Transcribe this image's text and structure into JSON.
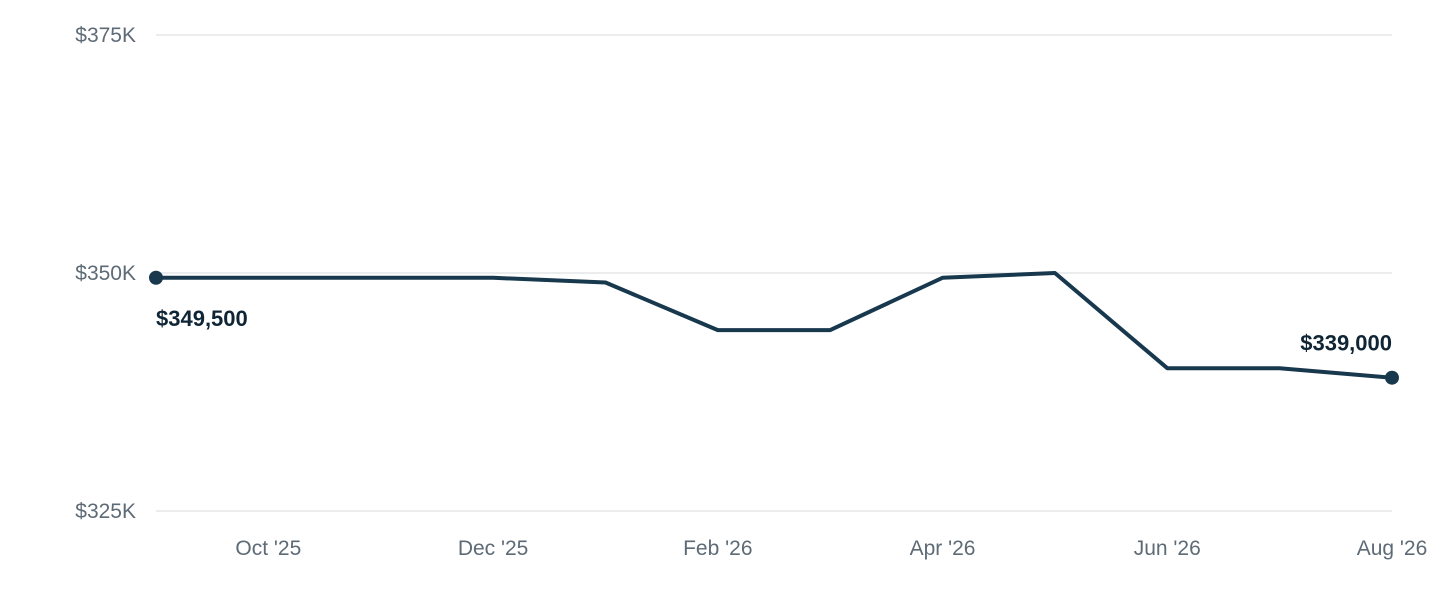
{
  "chart_data": {
    "type": "line",
    "x": [
      "2025-09",
      "2025-10",
      "2025-11",
      "2025-12",
      "2026-01",
      "2026-02",
      "2026-03",
      "2026-04",
      "2026-05",
      "2026-06",
      "2026-07",
      "2026-08"
    ],
    "series": [
      {
        "values": [
          349500,
          349500,
          349500,
          349500,
          349000,
          344000,
          344000,
          349500,
          350000,
          340000,
          340000,
          339000
        ]
      }
    ],
    "x_ticks": [
      {
        "x": "2025-10",
        "label": "Oct '25"
      },
      {
        "x": "2025-12",
        "label": "Dec '25"
      },
      {
        "x": "2026-02",
        "label": "Feb '26"
      },
      {
        "x": "2026-04",
        "label": "Apr '26"
      },
      {
        "x": "2026-06",
        "label": "Jun '26"
      },
      {
        "x": "2026-08",
        "label": "Aug '26"
      }
    ],
    "y_ticks": [
      {
        "value": 375000,
        "label": "$375K"
      },
      {
        "value": 350000,
        "label": "$350K"
      },
      {
        "value": 325000,
        "label": "$325K"
      }
    ],
    "ylim": [
      325000,
      375000
    ],
    "grid": true,
    "data_labels": [
      {
        "x": "2025-09",
        "value": 349500,
        "label": "$349,500"
      },
      {
        "x": "2026-08",
        "value": 339000,
        "label": "$339,000"
      }
    ],
    "title": "",
    "xlabel": "",
    "ylabel": "",
    "colors": {
      "line": "#18384e",
      "grid": "#e3e6e9",
      "tick_text": "#5e6b76",
      "label_text": "#0f2535"
    }
  }
}
